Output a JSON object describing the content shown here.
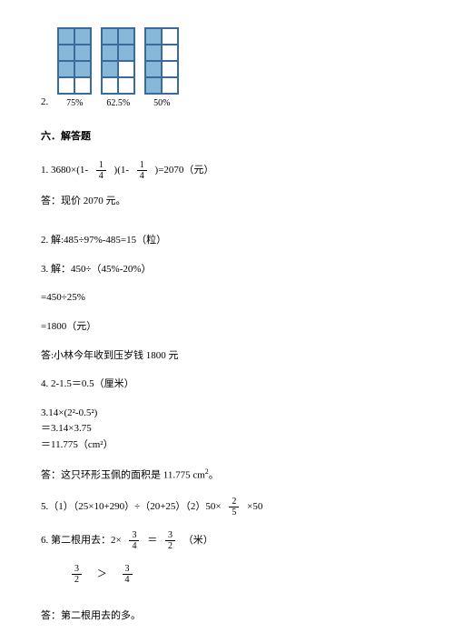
{
  "q2": {
    "label": "2.",
    "grids": [
      {
        "cols": 2,
        "rows": 4,
        "filled": [
          0,
          1,
          2,
          3,
          4,
          5
        ],
        "caption": "75%"
      },
      {
        "cols": 2,
        "rows": 4,
        "filled": [
          0,
          1,
          2,
          3,
          4
        ],
        "caption": "62.5%"
      },
      {
        "cols": 2,
        "rows": 4,
        "filled": [
          0,
          2,
          4,
          6
        ],
        "caption": "50%"
      }
    ],
    "cell_fill": "#87b8da",
    "cell_border": "#3b6b9a"
  },
  "section_title": "六．解答题",
  "p1_a": "1. 3680×(1-",
  "p1_b": ")(1-",
  "p1_c": ")=2070（元）",
  "f14n": "1",
  "f14d": "4",
  "p1_ans": "答：现价 2070 元。",
  "p2": "2. 解:485÷97%-485=15（粒）",
  "p3": "3. 解：450÷（45%-20%）",
  "p3b": "=450÷25%",
  "p3c": "=1800（元）",
  "p3_ans": "答:小林今年收到压岁钱 1800 元",
  "p4a": "4. 2-1.5＝0.5（厘米）",
  "p4b": "3.14×(2²-0.5²)",
  "p4c": "＝3.14×3.75",
  "p4d": "＝11.775（cm²）",
  "p4_ans_a": "答：这只环形玉佩的面积是 11.775",
  "p4_ans_b": " cm",
  "p4_ans_c": "。",
  "p5_a": "5.（1）（25×10+290）÷（20+25）（2）50×",
  "p5_b": "×50",
  "f25n": "2",
  "f25d": "5",
  "p6_a": "6. 第二根用去：2×",
  "p6_b": "＝",
  "p6_c": "（米）",
  "f34n": "3",
  "f34d": "4",
  "f32n": "3",
  "f32d": "2",
  "cmp": "＞",
  "p6_ans": "答：第二根用去的多。"
}
